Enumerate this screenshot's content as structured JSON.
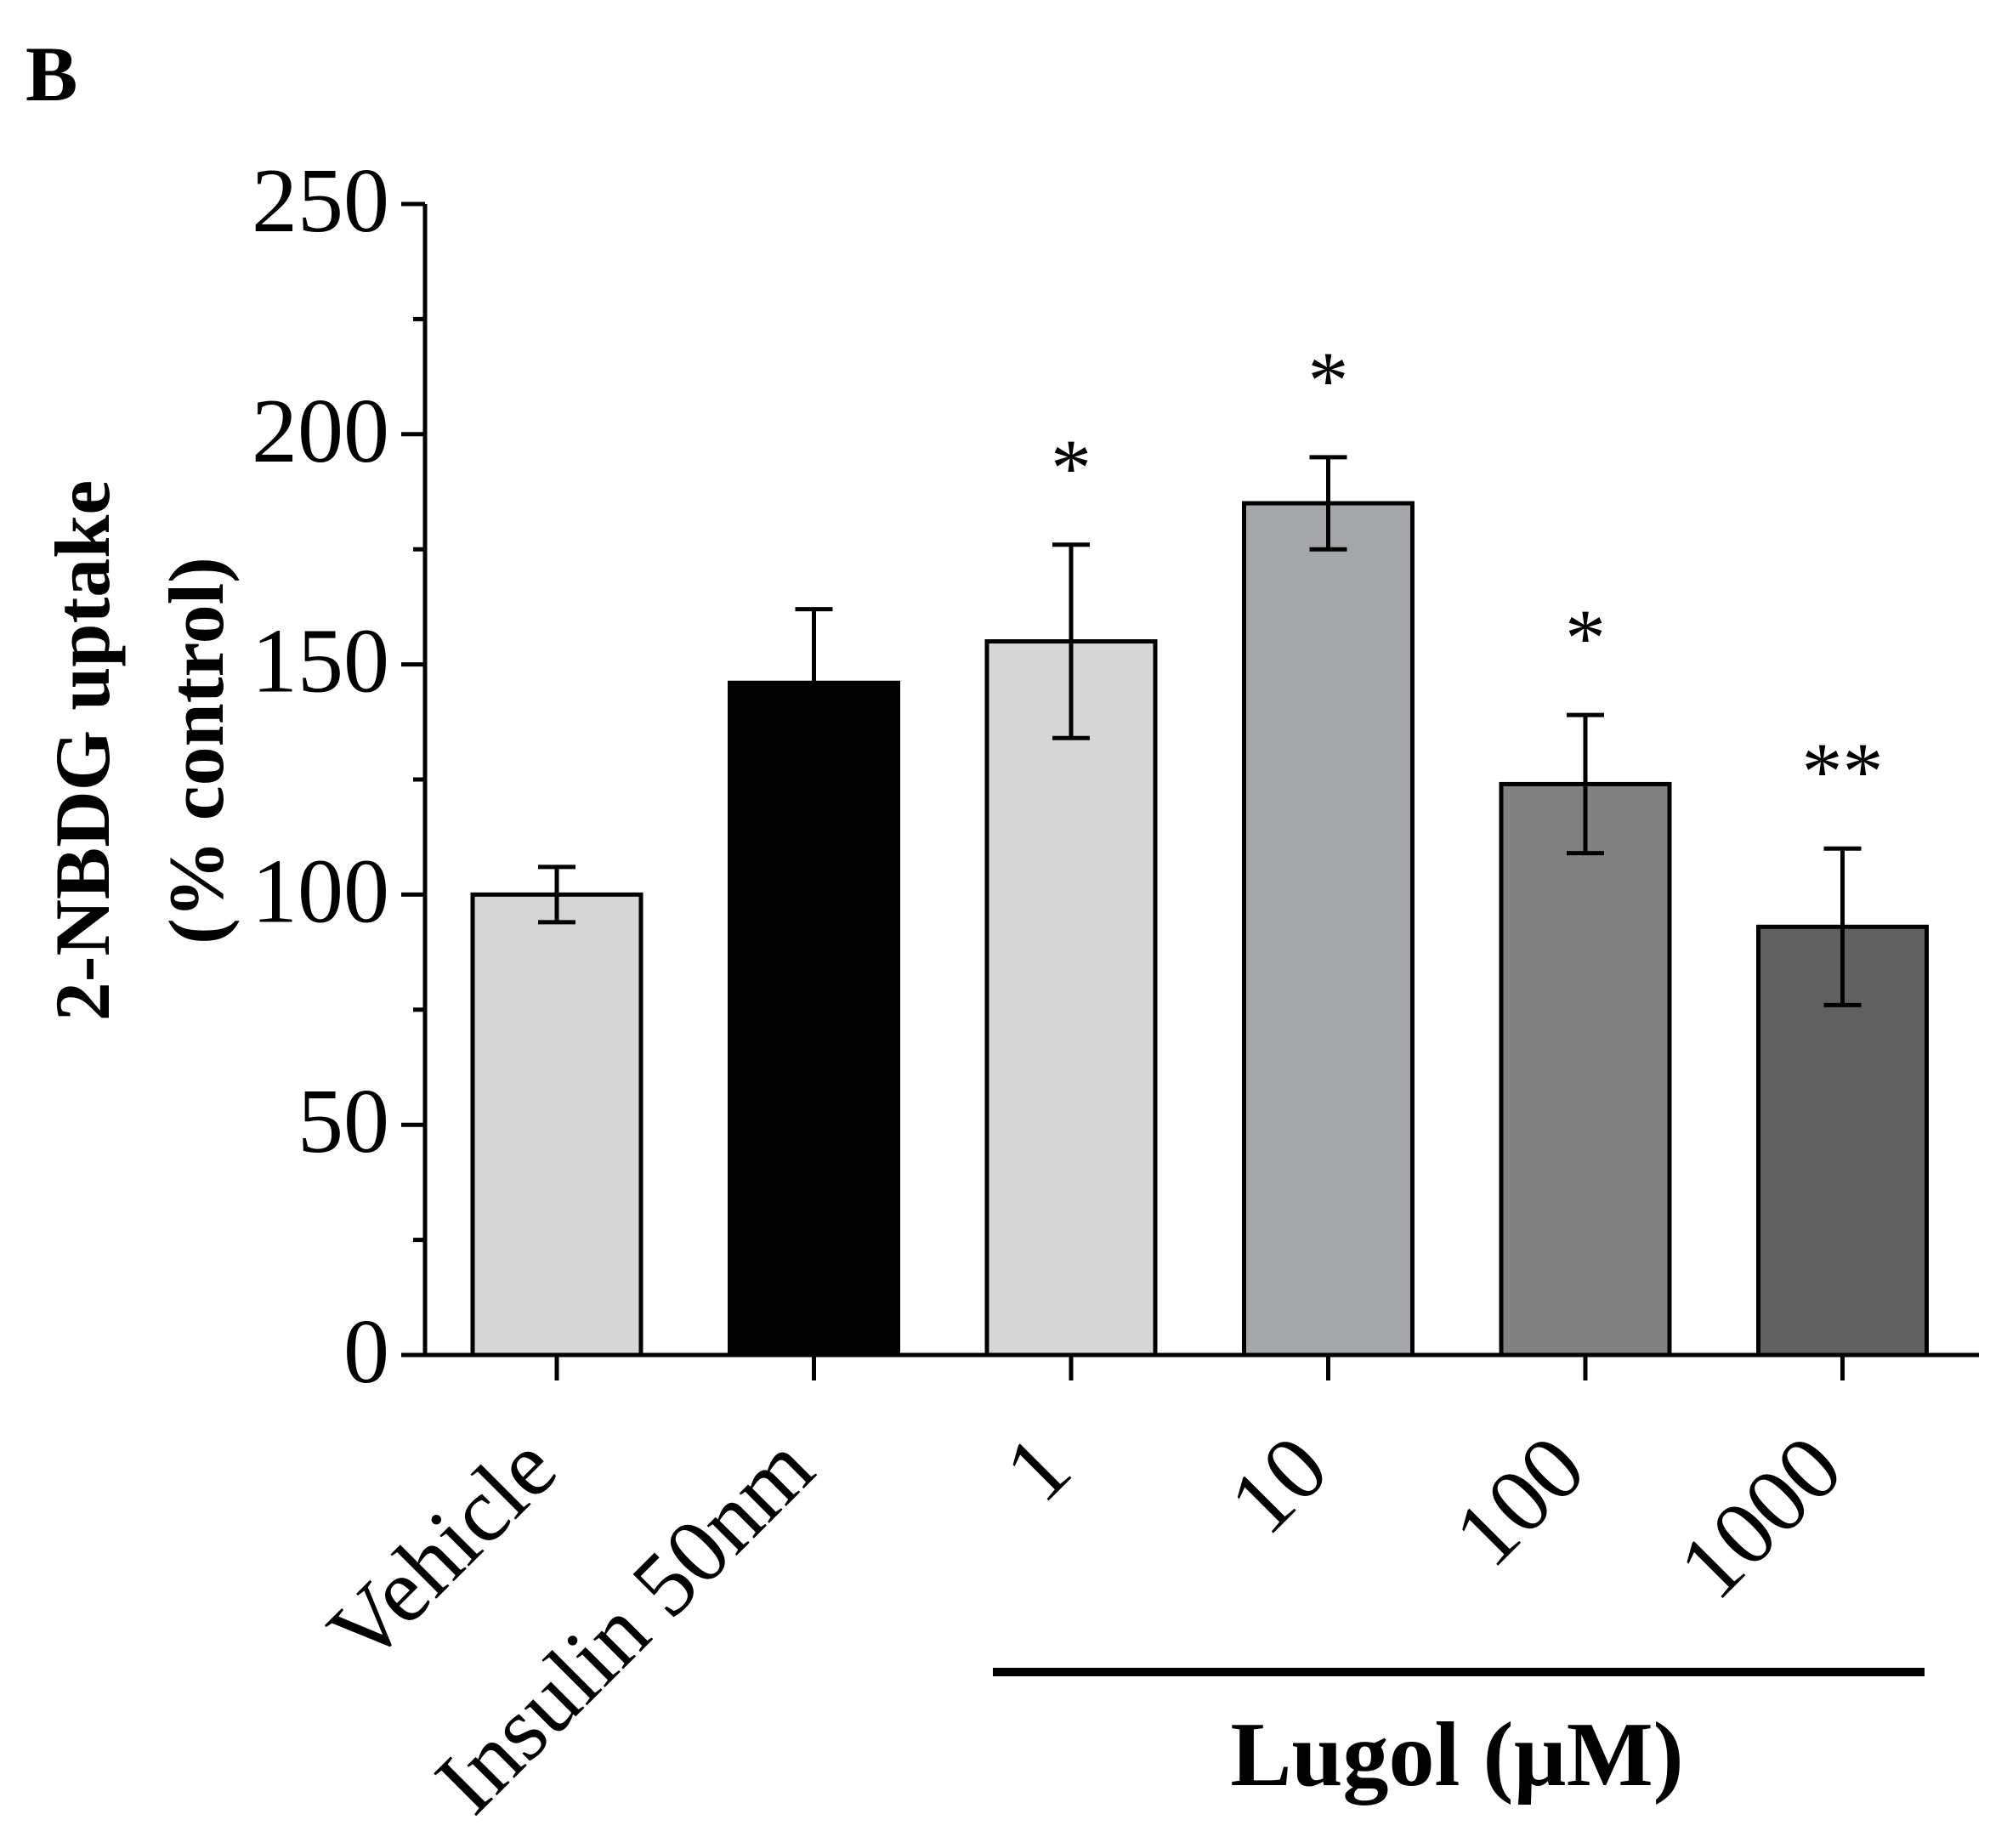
{
  "panel_label": "B",
  "chart_data": {
    "type": "bar",
    "title": "",
    "ylabel_line1": "2-NBDG uptake",
    "ylabel_line2": "(% control)",
    "xlabel": "",
    "ylim": [
      0,
      250
    ],
    "yticks": [
      0,
      50,
      100,
      150,
      200,
      250
    ],
    "ytick_labels": [
      "0",
      "50",
      "100",
      "150",
      "200",
      "250"
    ],
    "categories": [
      "Vehicle",
      "Insulin 50nm",
      "1",
      "10",
      "100",
      "1000"
    ],
    "values": [
      100,
      146,
      155,
      185,
      124,
      93
    ],
    "errors": [
      6,
      16,
      21,
      10,
      15,
      17
    ],
    "significance": [
      "",
      "",
      "*",
      "*",
      "*",
      "**"
    ],
    "bar_colors": [
      "#d6d6d6",
      "#000000",
      "#d6d6d6",
      "#a5a6a9",
      "#808080",
      "#606060"
    ],
    "group_label": "Lugol (µM)",
    "group_start_index": 2
  }
}
